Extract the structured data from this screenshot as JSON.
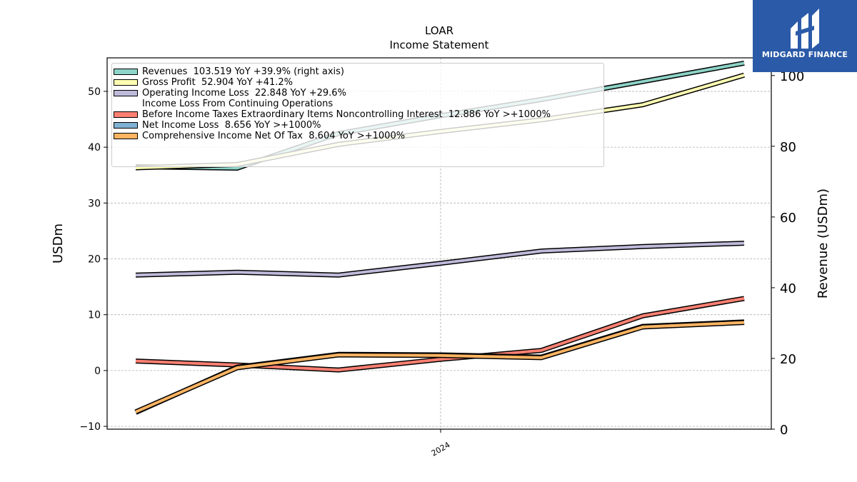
{
  "brand": {
    "name": "MIDGARD FINANCE",
    "color": "#2b5aa8"
  },
  "chart_data": {
    "type": "line",
    "title": "LOAR",
    "subtitle": "Income Statement",
    "ylabel": "USDm",
    "ylabel_right": "Revenue (USDm)",
    "x_tick_labels": [
      "2024"
    ],
    "x": [
      0,
      1,
      2,
      3,
      4,
      5,
      6
    ],
    "ylim": [
      -10.5,
      56
    ],
    "ylim_right": [
      0,
      105
    ],
    "yticks": [
      -10,
      0,
      10,
      20,
      30,
      40,
      50
    ],
    "yticks_right": [
      0,
      20,
      40,
      60,
      80,
      100
    ],
    "grid": true,
    "legend_position": "top-left",
    "series": [
      {
        "name": "Revenues  103.519 YoY +39.9% (right axis)",
        "axis": "right",
        "color": "#8dd3c7",
        "values": [
          74.2,
          73.8,
          83.6,
          88.6,
          93.2,
          98.3,
          103.5
        ]
      },
      {
        "name": "Gross Profit  52.904 YoY +41.2%",
        "axis": "left",
        "color": "#ffffb3",
        "values": [
          36.3,
          36.9,
          40.5,
          42.8,
          44.9,
          47.6,
          52.9
        ]
      },
      {
        "name": "Operating Income Loss  22.848 YoY +29.6%",
        "axis": "left",
        "color": "#bebada",
        "values": [
          17.1,
          17.6,
          17.1,
          19.2,
          21.4,
          22.2,
          22.8
        ]
      },
      {
        "name": "Income Loss From Continuing Operations\nBefore Income Taxes Extraordinary Items Noncontrolling Interest  12.886 YoY >+1000%",
        "axis": "left",
        "color": "#fb8072",
        "values": [
          1.7,
          1.0,
          0.1,
          2.0,
          3.6,
          9.8,
          12.9
        ]
      },
      {
        "name": "Net Income Loss  8.656 YoY >+1000%",
        "axis": "left",
        "color": "#80b1d3",
        "values": [
          -7.5,
          0.6,
          2.9,
          2.8,
          2.4,
          7.9,
          8.7
        ]
      },
      {
        "name": "Comprehensive Income Net Of Tax  8.604 YoY >+1000%",
        "axis": "left",
        "color": "#fdb462",
        "values": [
          -7.4,
          0.5,
          2.8,
          2.7,
          2.3,
          7.8,
          8.6
        ]
      }
    ]
  }
}
